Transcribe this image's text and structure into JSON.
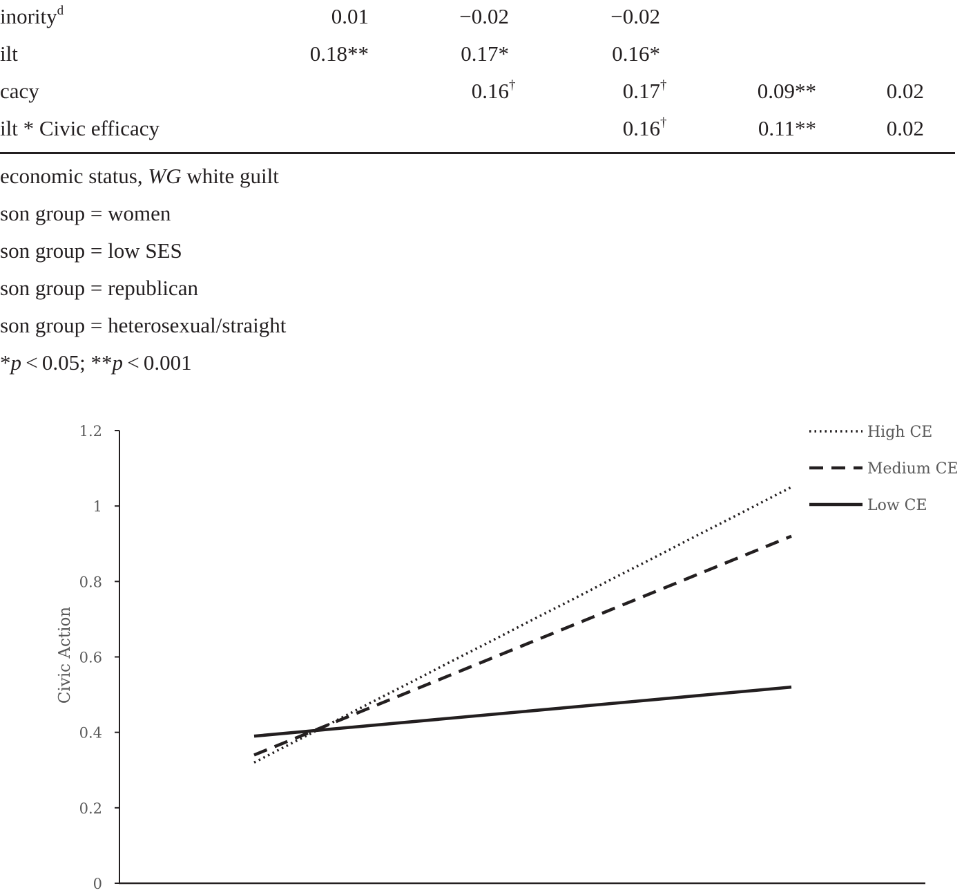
{
  "table": {
    "rows": [
      {
        "label": "inority",
        "label_sup": "d",
        "cells": [
          {
            "text": "0.01",
            "sup": ""
          },
          {
            "text": "−0.02",
            "sup": ""
          },
          {
            "text": "−0.02",
            "sup": ""
          },
          {
            "text": "",
            "sup": ""
          },
          {
            "text": "",
            "sup": ""
          }
        ]
      },
      {
        "label": "ilt",
        "label_sup": "",
        "cells": [
          {
            "text": "0.18**",
            "sup": ""
          },
          {
            "text": "0.17*",
            "sup": ""
          },
          {
            "text": "0.16*",
            "sup": ""
          },
          {
            "text": "",
            "sup": ""
          },
          {
            "text": "",
            "sup": ""
          }
        ]
      },
      {
        "label": "cacy",
        "label_sup": "",
        "cells": [
          {
            "text": "",
            "sup": ""
          },
          {
            "text": "0.16",
            "sup": "†"
          },
          {
            "text": "0.17",
            "sup": "†"
          },
          {
            "text": "0.09**",
            "sup": ""
          },
          {
            "text": "0.02",
            "sup": ""
          }
        ]
      },
      {
        "label": "ilt * Civic efficacy",
        "label_sup": "",
        "cells": [
          {
            "text": "",
            "sup": ""
          },
          {
            "text": "",
            "sup": ""
          },
          {
            "text": "0.16",
            "sup": "†"
          },
          {
            "text": "0.11**",
            "sup": ""
          },
          {
            "text": "0.02",
            "sup": ""
          }
        ]
      }
    ]
  },
  "notes": {
    "line1_pre": "economic status, ",
    "line1_abbr": "WG",
    "line1_post": " white guilt",
    "line2": "son group = women",
    "line3": "son group = low SES",
    "line4": "son group = republican",
    "line5": "son group = heterosexual/straight",
    "line6_a": " *",
    "line6_p1": "p",
    "line6_b": " < 0.05; **",
    "line6_p2": "p",
    "line6_c": " < 0.001"
  },
  "chart_data": {
    "type": "line",
    "title": "",
    "xlabel": "",
    "ylabel": "Civic Action",
    "ylim": [
      0,
      1.2
    ],
    "yticks": [
      "0",
      "0.2",
      "0.4",
      "0.6",
      "0.8",
      "1",
      "1.2"
    ],
    "x": [
      "",
      ""
    ],
    "series": [
      {
        "name": "High CE",
        "style": "dotted",
        "values": [
          0.32,
          1.05
        ]
      },
      {
        "name": "Medium CE",
        "style": "dashed",
        "values": [
          0.34,
          0.92
        ]
      },
      {
        "name": "Low CE",
        "style": "solid",
        "values": [
          0.39,
          0.52
        ]
      }
    ],
    "grid": false,
    "legend": "top-right",
    "line_color": "#231f20",
    "axis_color": "#231f20",
    "tick_color": "#595959"
  }
}
